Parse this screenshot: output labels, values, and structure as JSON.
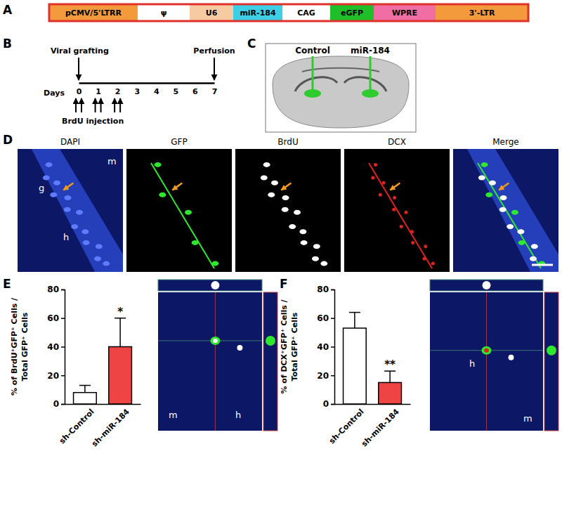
{
  "panel_labels": [
    "A",
    "B",
    "C",
    "D",
    "E",
    "F"
  ],
  "construct": {
    "segments": [
      {
        "label": "pCMV/5'LTRR",
        "color": "#f39a3d"
      },
      {
        "label": "ψ",
        "color": "#ffffff"
      },
      {
        "label": "U6",
        "color": "#f7caa2"
      },
      {
        "label": "miR-184",
        "color": "#3ccfe6"
      },
      {
        "label": "CAG",
        "color": "#ffffff"
      },
      {
        "label": "eGFP",
        "color": "#1fbf2a"
      },
      {
        "label": "WPRE",
        "color": "#f06ea3"
      },
      {
        "label": "3'-LTR",
        "color": "#f39a3d"
      }
    ]
  },
  "timeline": {
    "event_labels": [
      "Viral grafting",
      "Perfusion"
    ],
    "event_days": [
      0,
      7
    ],
    "axis_label": "Days",
    "days": [
      0,
      1,
      2,
      3,
      4,
      5,
      6,
      7
    ],
    "injection_label": "BrdU injection",
    "injection_days": [
      0,
      1,
      2
    ]
  },
  "brain_section": {
    "labels": [
      "Control",
      "miR-184"
    ]
  },
  "micrographs": {
    "channels": [
      "DAPI",
      "GFP",
      "BrdU",
      "DCX",
      "Merge"
    ],
    "region_labels": [
      "m",
      "g",
      "h"
    ]
  },
  "inset_labels": [
    [
      "m",
      "h"
    ],
    [
      "h",
      "m"
    ]
  ],
  "chart_data": [
    {
      "type": "bar",
      "categories": [
        "sh-Control",
        "sh-miR-184"
      ],
      "values": [
        8,
        40
      ],
      "errors": [
        5,
        20
      ],
      "colors": [
        "#ffffff",
        "#ee4443"
      ],
      "ylim": [
        0,
        80
      ],
      "yticks": [
        0,
        20,
        40,
        60,
        80
      ],
      "y_label": [
        "% of BrdU⁺GFP⁺ Cells /",
        "Total GFP⁺ Cells"
      ],
      "annotations": [
        {
          "label": "*",
          "category": "sh-miR-184"
        }
      ]
    },
    {
      "type": "bar",
      "categories": [
        "sh-Control",
        "sh-miR-184"
      ],
      "values": [
        53,
        15
      ],
      "errors": [
        11,
        8
      ],
      "colors": [
        "#ffffff",
        "#ee4443"
      ],
      "ylim": [
        0,
        80
      ],
      "yticks": [
        0,
        20,
        40,
        60,
        80
      ],
      "y_label": [
        "% of DCX⁺GFP⁺ Cells /",
        "Total GFP⁺ Cells"
      ],
      "annotations": [
        {
          "label": "**",
          "category": "sh-miR-184"
        }
      ]
    }
  ]
}
